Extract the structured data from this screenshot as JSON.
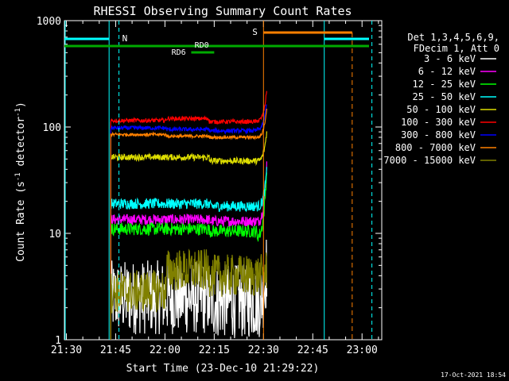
{
  "chart_data": {
    "type": "line",
    "title": "RHESSI Observing Summary Count Rates",
    "xlabel": "Start Time (23-Dec-10 21:29:22)",
    "ylabel_parts": [
      "Count Rate (s",
      "-1",
      " detector",
      "-1",
      ")"
    ],
    "y_scale": "log",
    "ylim": [
      1,
      1000
    ],
    "xlim_minutes_after_2130": [
      -0.6,
      96
    ],
    "x_ticks": [
      {
        "label": "21:30",
        "m": 0
      },
      {
        "label": "21:45",
        "m": 15
      },
      {
        "label": "22:00",
        "m": 30
      },
      {
        "label": "22:15",
        "m": 45
      },
      {
        "label": "22:30",
        "m": 60
      },
      {
        "label": "22:45",
        "m": 75
      },
      {
        "label": "23:00",
        "m": 90
      }
    ],
    "y_ticks": [
      {
        "label": "1",
        "v": 1
      },
      {
        "label": "10",
        "v": 10
      },
      {
        "label": "100",
        "v": 100
      },
      {
        "label": "1000",
        "v": 1000
      }
    ],
    "legend": {
      "header": [
        "Det 1,3,4,5,6,9,",
        "FDecim 1, Att 0"
      ],
      "placement": "right"
    },
    "series": [
      {
        "name": "3 - 6 keV",
        "color": "#ffffff",
        "segments": [
          [
            13.5,
            2.5
          ],
          [
            30.5,
            2.5
          ],
          [
            43.5,
            2.3
          ],
          [
            58,
            2.3
          ],
          [
            61,
            5
          ]
        ],
        "noise": 0.35
      },
      {
        "name": "6 - 12 keV",
        "color": "#ff00ff",
        "segments": [
          [
            13.5,
            13.5
          ],
          [
            30.5,
            13.5
          ],
          [
            43.5,
            13
          ],
          [
            58,
            13
          ],
          [
            61,
            45
          ]
        ],
        "noise": 0.05
      },
      {
        "name": "12 - 25 keV",
        "color": "#00ff00",
        "segments": [
          [
            13.5,
            11
          ],
          [
            30.5,
            11
          ],
          [
            43.5,
            10.5
          ],
          [
            58,
            9.5
          ],
          [
            61,
            40
          ]
        ],
        "noise": 0.06
      },
      {
        "name": "25 - 50 keV",
        "color": "#00ffff",
        "segments": [
          [
            13.5,
            19
          ],
          [
            30.5,
            19
          ],
          [
            43.5,
            18
          ],
          [
            58,
            18
          ],
          [
            61,
            38
          ]
        ],
        "noise": 0.05
      },
      {
        "name": "50 - 100 keV",
        "color": "#dddd00",
        "segments": [
          [
            13.5,
            52
          ],
          [
            30.5,
            52
          ],
          [
            43.5,
            48
          ],
          [
            58,
            48
          ],
          [
            61,
            90
          ]
        ],
        "noise": 0.03
      },
      {
        "name": "100 - 300 keV",
        "color": "#ff0000",
        "segments": [
          [
            13.5,
            115
          ],
          [
            30.5,
            120
          ],
          [
            43.5,
            112
          ],
          [
            58,
            115
          ],
          [
            61,
            220
          ]
        ],
        "noise": 0.02
      },
      {
        "name": "300 - 800 keV",
        "color": "#0000ff",
        "segments": [
          [
            13.5,
            98
          ],
          [
            30.5,
            95
          ],
          [
            43.5,
            92
          ],
          [
            58,
            95
          ],
          [
            61,
            170
          ]
        ],
        "noise": 0.02
      },
      {
        "name": "800 - 7000 keV",
        "color": "#ff8000",
        "segments": [
          [
            13.5,
            85
          ],
          [
            30.5,
            82
          ],
          [
            43.5,
            80
          ],
          [
            58,
            80
          ],
          [
            61,
            150
          ]
        ],
        "noise": 0.015
      },
      {
        "name": "7000 - 15000 keV",
        "color": "#808000",
        "segments": [
          [
            13.5,
            2.8
          ],
          [
            30.5,
            4.5
          ],
          [
            43.5,
            4
          ],
          [
            58,
            4
          ],
          [
            61,
            4.5
          ]
        ],
        "noise": 0.2
      }
    ],
    "annotations": [
      {
        "text": "N",
        "color": "#00ffff"
      },
      {
        "text": "S",
        "color": "#ff8000"
      },
      {
        "text": "RD0",
        "color": "#00aa00"
      },
      {
        "text": "RD6",
        "color": "#00aa00"
      }
    ],
    "footer_timestamp": "17-Oct-2021 18:54",
    "grid": false
  }
}
